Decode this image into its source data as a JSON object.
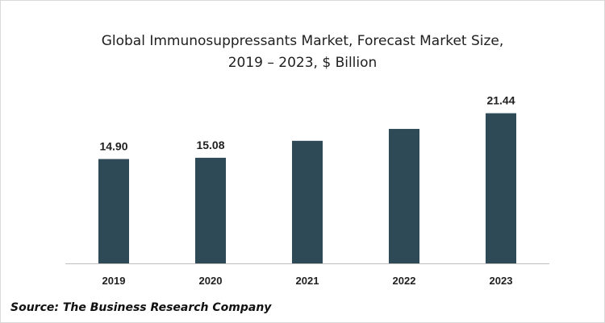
{
  "chart_data": {
    "type": "bar",
    "title_line1": "Global Immunosuppressants  Market, Forecast Market Size,",
    "title_line2": "2019 – 2023, $ Billion",
    "categories": [
      "2019",
      "2020",
      "2021",
      "2022",
      "2023"
    ],
    "values": [
      14.9,
      15.08,
      17.5,
      19.2,
      21.44
    ],
    "value_labels": [
      "14.90",
      "15.08",
      "",
      "",
      "21.44"
    ],
    "ylim": [
      0,
      23
    ],
    "grid": false,
    "bar_color": "#2e4a56",
    "axis_color": "#bfbfbf"
  },
  "source": "Source: The Business Research Company"
}
